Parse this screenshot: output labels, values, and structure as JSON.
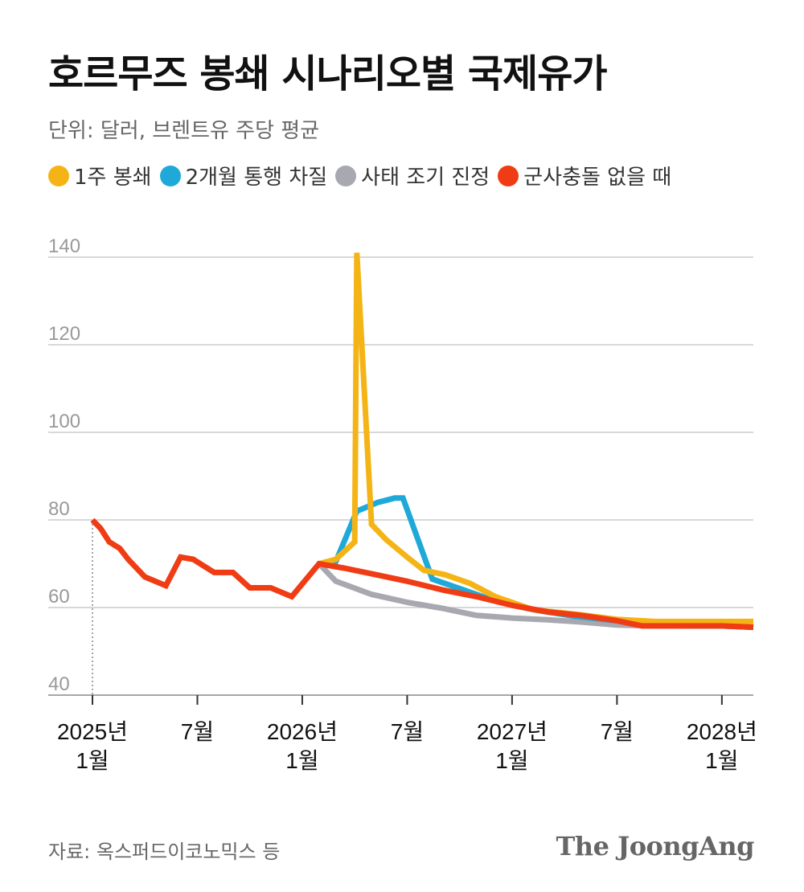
{
  "title": "호르무즈 봉쇄 시나리오별 국제유가",
  "unit": "단위: 달러, 브렌트유 주당 평균",
  "source": "자료: 옥스퍼드이코노믹스 등",
  "brand": "The JoongAng",
  "colors": {
    "week1": "#F5B416",
    "twoMonths": "#1FA9D8",
    "early": "#A8A8B0",
    "noConflict": "#F03C14",
    "grid": "#cccccc",
    "axis": "#888888",
    "tickText": "#999999"
  },
  "chart_data": {
    "type": "line",
    "title": "호르무즈 봉쇄 시나리오별 국제유가",
    "ylabel": "단위: 달러, 브렌트유 주당 평균",
    "xlabel": "",
    "ylim": [
      40,
      140
    ],
    "yticks": [
      40,
      60,
      80,
      100,
      120,
      140
    ],
    "xlim": [
      2025.0,
      2028.15
    ],
    "xticks": [
      {
        "x": 2025.0,
        "line1": "2025년",
        "line2": "1월"
      },
      {
        "x": 2025.5,
        "line1": "7월",
        "line2": ""
      },
      {
        "x": 2026.0,
        "line1": "2026년",
        "line2": "1월"
      },
      {
        "x": 2026.5,
        "line1": "7월",
        "line2": ""
      },
      {
        "x": 2027.0,
        "line1": "2027년",
        "line2": "1월"
      },
      {
        "x": 2027.5,
        "line1": "7월",
        "line2": ""
      },
      {
        "x": 2028.0,
        "line1": "2028년",
        "line2": "1월"
      }
    ],
    "legend_position": "top",
    "series": [
      {
        "name": "1주 봉쇄",
        "colorKey": "week1",
        "points": [
          [
            2026.08,
            70
          ],
          [
            2026.16,
            71
          ],
          [
            2026.25,
            75
          ],
          [
            2026.26,
            141
          ],
          [
            2026.33,
            79
          ],
          [
            2026.4,
            75.5
          ],
          [
            2026.5,
            71.5
          ],
          [
            2026.58,
            68.5
          ],
          [
            2026.68,
            67.5
          ],
          [
            2026.8,
            65.5
          ],
          [
            2026.92,
            62.5
          ],
          [
            2027.1,
            59.5
          ],
          [
            2027.3,
            58.5
          ],
          [
            2027.5,
            57.3
          ],
          [
            2027.68,
            56.8
          ],
          [
            2027.85,
            56.8
          ],
          [
            2028.0,
            56.8
          ],
          [
            2028.15,
            56.8
          ]
        ]
      },
      {
        "name": "2개월 통행 차질",
        "colorKey": "twoMonths",
        "points": [
          [
            2026.08,
            70
          ],
          [
            2026.16,
            70.5
          ],
          [
            2026.26,
            82
          ],
          [
            2026.36,
            84
          ],
          [
            2026.44,
            85
          ],
          [
            2026.48,
            85
          ],
          [
            2026.62,
            66.5
          ],
          [
            2026.8,
            63.5
          ],
          [
            2026.92,
            61.5
          ],
          [
            2027.1,
            59.5
          ],
          [
            2027.3,
            58
          ],
          [
            2027.5,
            57
          ],
          [
            2027.68,
            56
          ],
          [
            2027.85,
            55.8
          ],
          [
            2028.0,
            55.8
          ],
          [
            2028.15,
            55.5
          ]
        ]
      },
      {
        "name": "사태 조기 진정",
        "colorKey": "early",
        "points": [
          [
            2026.08,
            70
          ],
          [
            2026.16,
            66
          ],
          [
            2026.33,
            63
          ],
          [
            2026.5,
            61.2
          ],
          [
            2026.67,
            59.8
          ],
          [
            2026.83,
            58.2
          ],
          [
            2027.0,
            57.6
          ],
          [
            2027.17,
            57.2
          ],
          [
            2027.33,
            56.7
          ],
          [
            2027.5,
            56
          ],
          [
            2027.68,
            55.8
          ],
          [
            2027.85,
            55.8
          ],
          [
            2028.0,
            55.8
          ],
          [
            2028.15,
            55.5
          ]
        ]
      },
      {
        "name": "군사충돌 없을 때",
        "colorKey": "noConflict",
        "points": [
          [
            2025.0,
            80
          ],
          [
            2025.04,
            78
          ],
          [
            2025.08,
            75
          ],
          [
            2025.13,
            73.5
          ],
          [
            2025.17,
            71
          ],
          [
            2025.25,
            67
          ],
          [
            2025.35,
            65
          ],
          [
            2025.42,
            71.5
          ],
          [
            2025.48,
            71
          ],
          [
            2025.58,
            68
          ],
          [
            2025.67,
            68
          ],
          [
            2025.75,
            64.5
          ],
          [
            2025.85,
            64.5
          ],
          [
            2025.95,
            62.5
          ],
          [
            2026.08,
            70
          ],
          [
            2026.2,
            69
          ],
          [
            2026.35,
            67.5
          ],
          [
            2026.5,
            66
          ],
          [
            2026.67,
            64
          ],
          [
            2026.83,
            62.5
          ],
          [
            2027.0,
            60.5
          ],
          [
            2027.17,
            59
          ],
          [
            2027.33,
            58.2
          ],
          [
            2027.5,
            57
          ],
          [
            2027.62,
            55.8
          ],
          [
            2027.8,
            55.8
          ],
          [
            2028.0,
            55.8
          ],
          [
            2028.15,
            55.5
          ]
        ]
      }
    ]
  }
}
